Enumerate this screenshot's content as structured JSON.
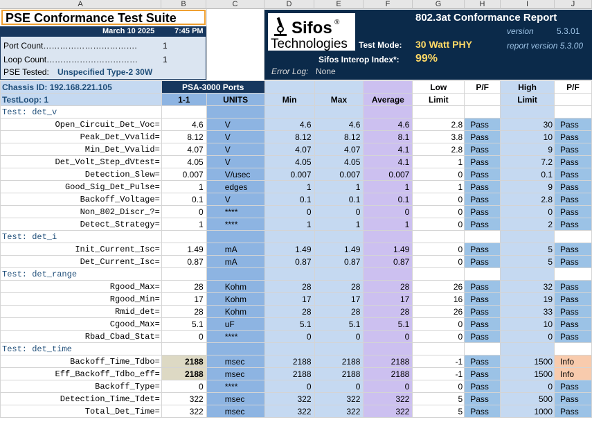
{
  "columns": [
    "A",
    "B",
    "C",
    "D",
    "E",
    "F",
    "G",
    "H",
    "I",
    "J"
  ],
  "header": {
    "title": "PSE Conformance Test Suite",
    "date": "March 10 2025",
    "time": "7:45 PM",
    "port_count_label": "Port Count…………………………….",
    "port_count": "1",
    "loop_count_label": "Loop Count……………………………",
    "loop_count": "1",
    "pse_tested_label": "PSE Tested:",
    "pse_tested": "Unspecified Type-2 30W"
  },
  "right_header": {
    "logo_name": "Sifos",
    "logo_reg": "®",
    "logo_sub": "Technologies",
    "report_title": "802.3at Conformance Report",
    "version_label": "version",
    "version": "5.3.01",
    "test_mode_label": "Test Mode:",
    "test_mode": "30 Watt PHY",
    "report_version": "report version 5.3.00",
    "interop_label": "Sifos Interop Index*:",
    "interop": "99%",
    "error_log_label": "Error Log:",
    "error_log": "None"
  },
  "table_header": {
    "chassis": "Chassis ID: 192.168.221.105",
    "testloop": "TestLoop:  1",
    "ports": "PSA-3000 Ports",
    "port": "1-1",
    "units": "UNITS",
    "min": "Min",
    "max": "Max",
    "average": "Average",
    "low_limit_1": "Low",
    "low_limit_2": "Limit",
    "pf": "P/F",
    "high_limit_1": "High",
    "high_limit_2": "Limit",
    "pf2": "P/F"
  },
  "rows": [
    {
      "section": "Test: det_v"
    },
    {
      "name": "Open_Circuit_Det_Voc=",
      "val": "4.6",
      "unit": "V",
      "min": "4.6",
      "max": "4.6",
      "avg": "4.6",
      "low": "2.8",
      "pf1": "Pass",
      "high": "30",
      "pf2": "Pass"
    },
    {
      "name": "Peak_Det_Vvalid=",
      "val": "8.12",
      "unit": "V",
      "min": "8.12",
      "max": "8.12",
      "avg": "8.1",
      "low": "3.8",
      "pf1": "Pass",
      "high": "10",
      "pf2": "Pass"
    },
    {
      "name": "Min_Det_Vvalid=",
      "val": "4.07",
      "unit": "V",
      "min": "4.07",
      "max": "4.07",
      "avg": "4.1",
      "low": "2.8",
      "pf1": "Pass",
      "high": "9",
      "pf2": "Pass"
    },
    {
      "name": "Det_Volt_Step_dVtest=",
      "val": "4.05",
      "unit": "V",
      "min": "4.05",
      "max": "4.05",
      "avg": "4.1",
      "low": "1",
      "pf1": "Pass",
      "high": "7.2",
      "pf2": "Pass"
    },
    {
      "name": "Detection_Slew=",
      "val": "0.007",
      "unit": "V/usec",
      "min": "0.007",
      "max": "0.007",
      "avg": "0.007",
      "low": "0",
      "pf1": "Pass",
      "high": "0.1",
      "pf2": "Pass"
    },
    {
      "name": "Good_Sig_Det_Pulse=",
      "val": "1",
      "unit": "edges",
      "min": "1",
      "max": "1",
      "avg": "1",
      "low": "1",
      "pf1": "Pass",
      "high": "9",
      "pf2": "Pass"
    },
    {
      "name": "Backoff_Voltage=",
      "val": "0.1",
      "unit": "V",
      "min": "0.1",
      "max": "0.1",
      "avg": "0.1",
      "low": "0",
      "pf1": "Pass",
      "high": "2.8",
      "pf2": "Pass"
    },
    {
      "name": "Non_802_Discr_?=",
      "val": "0",
      "unit": "****",
      "min": "0",
      "max": "0",
      "avg": "0",
      "low": "0",
      "pf1": "Pass",
      "high": "0",
      "pf2": "Pass"
    },
    {
      "name": "Detect_Strategy=",
      "val": "1",
      "unit": "****",
      "min": "1",
      "max": "1",
      "avg": "1",
      "low": "0",
      "pf1": "Pass",
      "high": "2",
      "pf2": "Pass"
    },
    {
      "section": "Test: det_i"
    },
    {
      "name": "Init_Current_Isc=",
      "val": "1.49",
      "unit": "mA",
      "min": "1.49",
      "max": "1.49",
      "avg": "1.49",
      "low": "0",
      "pf1": "Pass",
      "high": "5",
      "pf2": "Pass"
    },
    {
      "name": "Det_Current_Isc=",
      "val": "0.87",
      "unit": "mA",
      "min": "0.87",
      "max": "0.87",
      "avg": "0.87",
      "low": "0",
      "pf1": "Pass",
      "high": "5",
      "pf2": "Pass"
    },
    {
      "section": "Test: det_range"
    },
    {
      "name": "Rgood_Max=",
      "val": "28",
      "unit": "Kohm",
      "min": "28",
      "max": "28",
      "avg": "28",
      "low": "26",
      "pf1": "Pass",
      "high": "32",
      "pf2": "Pass"
    },
    {
      "name": "Rgood_Min=",
      "val": "17",
      "unit": "Kohm",
      "min": "17",
      "max": "17",
      "avg": "17",
      "low": "16",
      "pf1": "Pass",
      "high": "19",
      "pf2": "Pass"
    },
    {
      "name": "Rmid_det=",
      "val": "28",
      "unit": "Kohm",
      "min": "28",
      "max": "28",
      "avg": "28",
      "low": "26",
      "pf1": "Pass",
      "high": "33",
      "pf2": "Pass"
    },
    {
      "name": "Cgood_Max=",
      "val": "5.1",
      "unit": "uF",
      "min": "5.1",
      "max": "5.1",
      "avg": "5.1",
      "low": "0",
      "pf1": "Pass",
      "high": "10",
      "pf2": "Pass"
    },
    {
      "name": "Rbad_Cbad_Stat=",
      "val": "0",
      "unit": "****",
      "min": "0",
      "max": "0",
      "avg": "0",
      "low": "0",
      "pf1": "Pass",
      "high": "0",
      "pf2": "Pass"
    },
    {
      "section": "Test: det_time"
    },
    {
      "name": "Backoff_Time_Tdbo=",
      "val": "2188",
      "unit": "msec",
      "min": "2188",
      "max": "2188",
      "avg": "2188",
      "low": "-1",
      "pf1": "Pass",
      "high": "1500",
      "pf2": "Info",
      "hl": true
    },
    {
      "name": "Eff_Backoff_Tdbo_eff=",
      "val": "2188",
      "unit": "msec",
      "min": "2188",
      "max": "2188",
      "avg": "2188",
      "low": "-1",
      "pf1": "Pass",
      "high": "1500",
      "pf2": "Info",
      "hl": true
    },
    {
      "name": "Backoff_Type=",
      "val": "0",
      "unit": "****",
      "min": "0",
      "max": "0",
      "avg": "0",
      "low": "0",
      "pf1": "Pass",
      "high": "0",
      "pf2": "Pass"
    },
    {
      "name": "Detection_Time_Tdet=",
      "val": "322",
      "unit": "msec",
      "min": "322",
      "max": "322",
      "avg": "322",
      "low": "5",
      "pf1": "Pass",
      "high": "500",
      "pf2": "Pass"
    },
    {
      "name": "Total_Det_Time=",
      "val": "322",
      "unit": "msec",
      "min": "322",
      "max": "322",
      "avg": "322",
      "low": "5",
      "pf1": "Pass",
      "high": "1000",
      "pf2": "Pass"
    }
  ]
}
